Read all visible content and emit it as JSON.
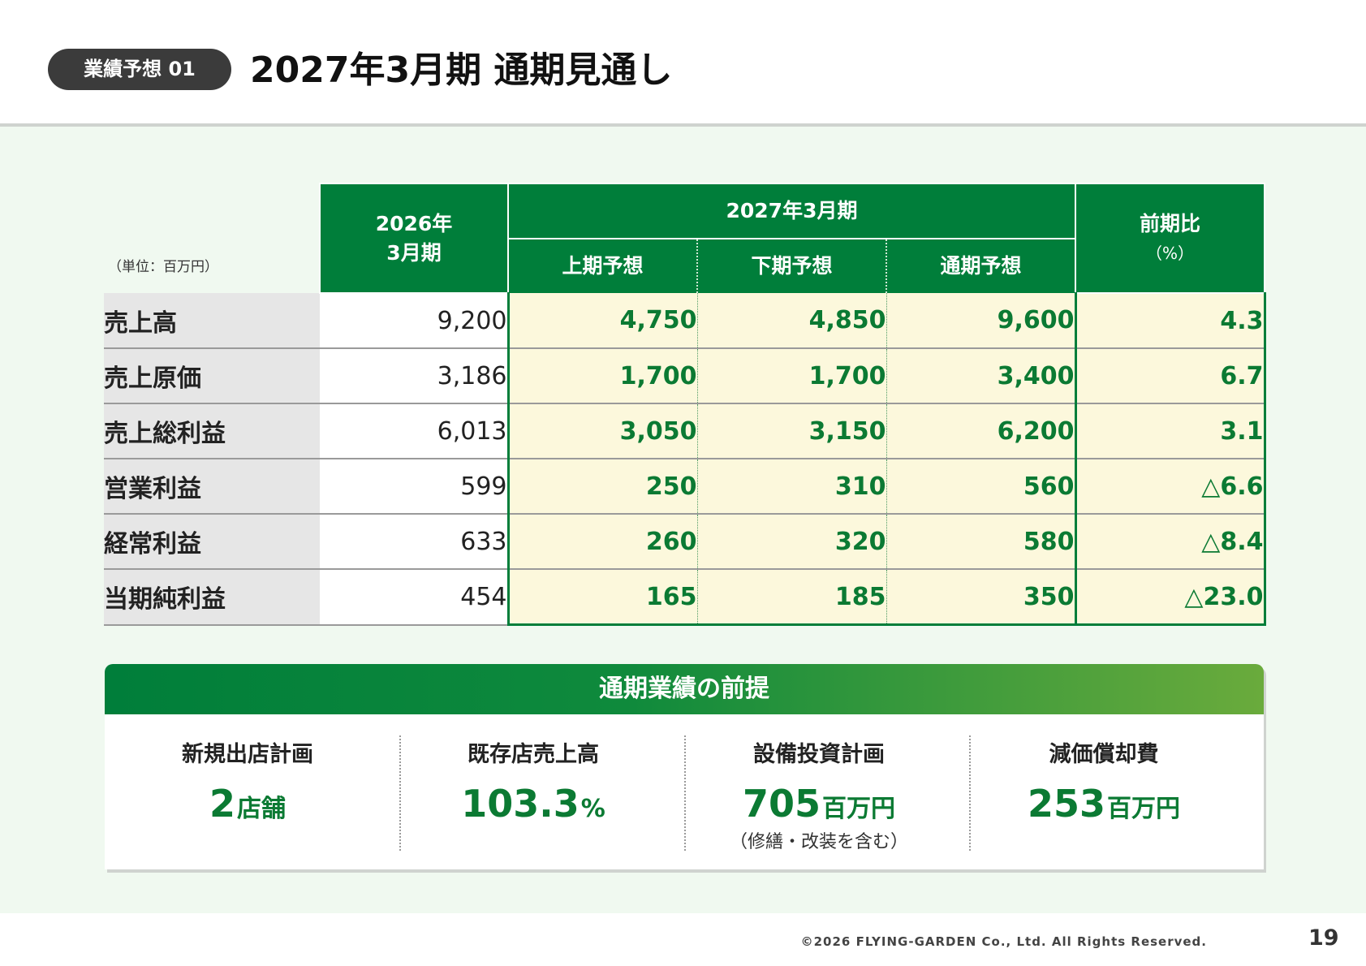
{
  "header": {
    "badge": "業績予想 01",
    "title": "2027年3月期 通期見通し"
  },
  "table": {
    "unit": "（単位：百万円）",
    "headers": {
      "prev_line1": "2026年",
      "prev_line2": "3月期",
      "fy": "2027年3月期",
      "h1": "上期予想",
      "h2": "下期予想",
      "full": "通期予想",
      "ratio_line1": "前期比",
      "ratio_line2": "（%）"
    },
    "rows": [
      {
        "label": "売上高",
        "prev": "9,200",
        "h1": "4,750",
        "h2": "4,850",
        "full": "9,600",
        "ratio": "4.3"
      },
      {
        "label": "売上原価",
        "prev": "3,186",
        "h1": "1,700",
        "h2": "1,700",
        "full": "3,400",
        "ratio": "6.7"
      },
      {
        "label": "売上総利益",
        "prev": "6,013",
        "h1": "3,050",
        "h2": "3,150",
        "full": "6,200",
        "ratio": "3.1"
      },
      {
        "label": "営業利益",
        "prev": "599",
        "h1": "250",
        "h2": "310",
        "full": "560",
        "ratio": "△6.6"
      },
      {
        "label": "経常利益",
        "prev": "633",
        "h1": "260",
        "h2": "320",
        "full": "580",
        "ratio": "△8.4"
      },
      {
        "label": "当期純利益",
        "prev": "454",
        "h1": "165",
        "h2": "185",
        "full": "350",
        "ratio": "△23.0"
      }
    ]
  },
  "premise": {
    "title": "通期業績の前提",
    "items": [
      {
        "label": "新規出店計画",
        "value": "2",
        "unit": "店舗",
        "note": ""
      },
      {
        "label": "既存店売上高",
        "value": "103.3",
        "unit": "%",
        "note": ""
      },
      {
        "label": "設備投資計画",
        "value": "705",
        "unit": "百万円",
        "note": "（修繕・改装を含む）"
      },
      {
        "label": "減価償却費",
        "value": "253",
        "unit": "百万円",
        "note": ""
      }
    ]
  },
  "footer": {
    "copyright": "©2026 FLYING-GARDEN Co., Ltd. All Rights Reserved.",
    "page": "19"
  },
  "colors": {
    "accent_green": "#007e3a",
    "forecast_bg": "#fcf8dc",
    "page_bg": "#f0f9f0"
  }
}
